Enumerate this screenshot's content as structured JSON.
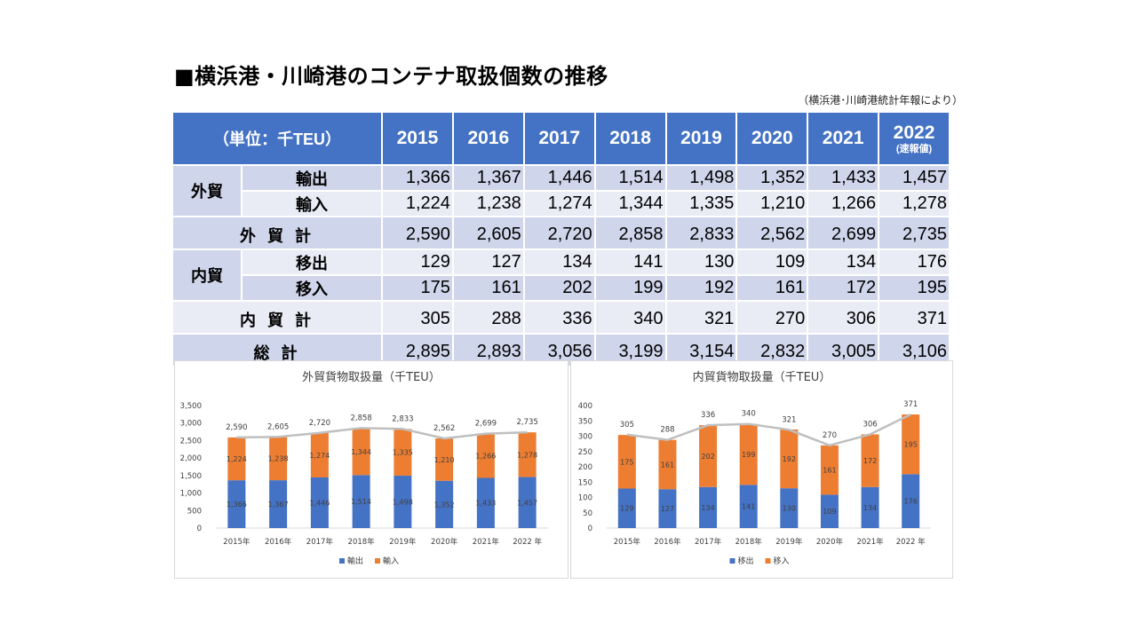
{
  "title": "■横浜港・川崎港のコンテナ取扱個数の推移",
  "source": "（横浜港･川崎港統計年報により）",
  "table": {
    "unit_label": "（単位：千TEU）",
    "years": [
      "2015",
      "2016",
      "2017",
      "2018",
      "2019",
      "2020",
      "2021",
      "2022"
    ],
    "year_note": "(速報値)",
    "foreign_group": "外貿",
    "domestic_group": "内貿",
    "rows": [
      {
        "label": "輸出",
        "values": [
          "1,366",
          "1,367",
          "1,446",
          "1,514",
          "1,498",
          "1,352",
          "1,433",
          "1,457"
        ]
      },
      {
        "label": "輸入",
        "values": [
          "1,224",
          "1,238",
          "1,274",
          "1,344",
          "1,335",
          "1,210",
          "1,266",
          "1,278"
        ]
      },
      {
        "label": "外 貿 計",
        "values": [
          "2,590",
          "2,605",
          "2,720",
          "2,858",
          "2,833",
          "2,562",
          "2,699",
          "2,735"
        ]
      },
      {
        "label": "移出",
        "values": [
          "129",
          "127",
          "134",
          "141",
          "130",
          "109",
          "134",
          "176"
        ]
      },
      {
        "label": "移入",
        "values": [
          "175",
          "161",
          "202",
          "199",
          "192",
          "161",
          "172",
          "195"
        ]
      },
      {
        "label": "内 貿 計",
        "values": [
          "305",
          "288",
          "336",
          "340",
          "321",
          "270",
          "306",
          "371"
        ]
      },
      {
        "label": "総 計",
        "values": [
          "2,895",
          "2,893",
          "3,056",
          "3,199",
          "3,154",
          "2,832",
          "3,005",
          "3,106"
        ]
      }
    ]
  },
  "chart_data": [
    {
      "type": "bar",
      "stacked": true,
      "title": "外貿貨物取扱量（千TEU）",
      "categories": [
        "2015年",
        "2016年",
        "2017年",
        "2018年",
        "2019年",
        "2020年",
        "2021年",
        "2022 年"
      ],
      "series": [
        {
          "name": "輸出",
          "values": [
            1366,
            1367,
            1446,
            1514,
            1498,
            1352,
            1433,
            1457
          ],
          "color": "#4472c4"
        },
        {
          "name": "輸入",
          "values": [
            1224,
            1238,
            1274,
            1344,
            1335,
            1210,
            1266,
            1278
          ],
          "color": "#ed7d31"
        }
      ],
      "totals": [
        2590,
        2605,
        2720,
        2858,
        2833,
        2562,
        2699,
        2735
      ],
      "total_line_color": "#bfbfbf",
      "ylim": [
        0,
        3500
      ],
      "yticks": [
        0,
        500,
        1000,
        1500,
        2000,
        2500,
        3000,
        3500
      ],
      "ytick_labels": [
        "0",
        "500",
        "1,000",
        "1,500",
        "2,000",
        "2,500",
        "3,000",
        "3,500"
      ],
      "legend": "bottom"
    },
    {
      "type": "bar",
      "stacked": true,
      "title": "内貿貨物取扱量（千TEU）",
      "categories": [
        "2015年",
        "2016年",
        "2017年",
        "2018年",
        "2019年",
        "2020年",
        "2021年",
        "2022 年"
      ],
      "series": [
        {
          "name": "移出",
          "values": [
            129,
            127,
            134,
            141,
            130,
            109,
            134,
            176
          ],
          "color": "#4472c4"
        },
        {
          "name": "移入",
          "values": [
            175,
            161,
            202,
            199,
            192,
            161,
            172,
            195
          ],
          "color": "#ed7d31"
        }
      ],
      "totals": [
        305,
        288,
        336,
        340,
        321,
        270,
        306,
        371
      ],
      "total_line_color": "#bfbfbf",
      "ylim": [
        0,
        400
      ],
      "yticks": [
        0,
        50,
        100,
        150,
        200,
        250,
        300,
        350,
        400
      ],
      "ytick_labels": [
        "0",
        "50",
        "100",
        "150",
        "200",
        "250",
        "300",
        "350",
        "400"
      ],
      "legend": "bottom"
    }
  ]
}
